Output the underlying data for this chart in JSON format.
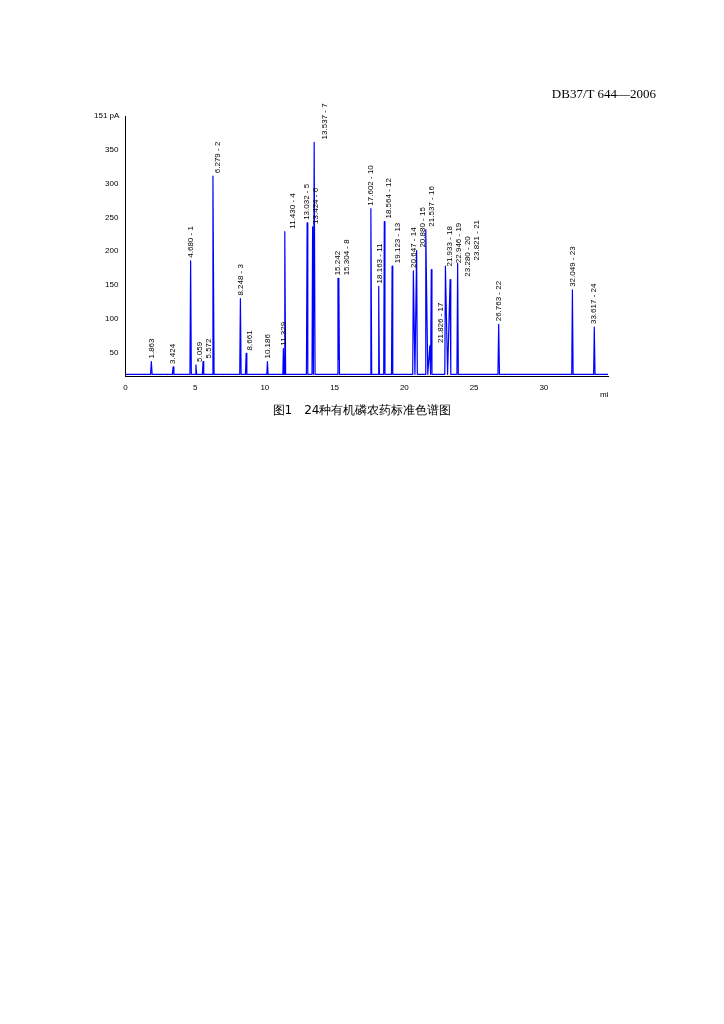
{
  "chart_data": {
    "type": "line",
    "title": "图1　24种有机磷农药标准色谱图",
    "xlabel": "mi",
    "xlim": [
      0,
      34.6
    ],
    "xticks": [
      0,
      5,
      10,
      15,
      20,
      25,
      30
    ],
    "ylim": [
      15,
      400
    ],
    "yticks": [
      50,
      100,
      150,
      200,
      250,
      300,
      350
    ],
    "ylabel": "151 pA",
    "grid": false,
    "legend": false,
    "marker": "none",
    "line_style": "solid",
    "series": [
      {
        "color": "#0000ff",
        "x": [
          0,
          1.81,
          1.863,
          1.92,
          3.37,
          3.424,
          3.48,
          4.63,
          4.68,
          4.73,
          5.01,
          5.059,
          5.11,
          5.52,
          5.572,
          5.62,
          6.22,
          6.279,
          6.36,
          8.2,
          8.248,
          8.3,
          8.61,
          8.661,
          8.71,
          10.14,
          10.186,
          10.23,
          11.29,
          11.329,
          11.38,
          11.43,
          11.49,
          12.98,
          13.032,
          13.08,
          13.38,
          13.424,
          13.48,
          13.537,
          13.6,
          15.2,
          15.242,
          15.273,
          15.304,
          15.35,
          17.55,
          17.602,
          17.66,
          18.12,
          18.163,
          18.21,
          18.52,
          18.564,
          18.61,
          19.08,
          19.123,
          19.17,
          20.6,
          20.647,
          20.76,
          20.88,
          20.93,
          21.49,
          21.537,
          21.68,
          21.826,
          21.88,
          21.933,
          21.98,
          22.9,
          22.946,
          23.1,
          23.28,
          23.33,
          23.77,
          23.821,
          23.87,
          26.71,
          26.763,
          26.82,
          32,
          32.049,
          32.1,
          33.57,
          33.617,
          33.67,
          34.6
        ],
        "values": [
          18,
          18,
          37,
          18,
          18,
          29,
          18,
          18,
          186,
          18,
          18,
          32,
          18,
          18,
          37,
          18,
          18,
          311,
          18,
          18,
          130,
          18,
          18,
          49,
          18,
          18,
          37,
          18,
          18,
          56,
          18,
          229,
          18,
          18,
          242,
          18,
          18,
          236,
          18,
          361,
          18,
          18,
          160,
          40,
          160,
          18,
          18,
          263,
          18,
          18,
          148,
          18,
          18,
          244,
          18,
          18,
          178,
          18,
          18,
          171,
          18,
          201,
          18,
          18,
          232,
          18,
          60,
          18,
          173,
          18,
          18,
          178,
          18,
          158,
          18,
          18,
          182,
          18,
          18,
          92,
          18,
          18,
          143,
          18,
          18,
          88,
          18,
          18
        ]
      }
    ],
    "annotations": [
      "DB37/T 644—2006",
      {
        "text": "1.863",
        "x": 1.863,
        "y": 37
      },
      {
        "text": "3.424",
        "x": 3.424,
        "y": 29
      },
      {
        "text": "4.680 - 1",
        "x": 4.68,
        "y": 186
      },
      {
        "text": "5.059",
        "x": 5.059,
        "y": 32
      },
      {
        "text": "5.572",
        "x": 5.572,
        "y": 37
      },
      {
        "text": "6.279 - 2",
        "x": 6.279,
        "y": 311
      },
      {
        "text": "8.248 - 3",
        "x": 8.248,
        "y": 130
      },
      {
        "text": "8.661",
        "x": 8.661,
        "y": 49
      },
      {
        "text": "10.186",
        "x": 10.186,
        "y": 37
      },
      {
        "text": "11.329",
        "x": 11.329,
        "y": 56
      },
      {
        "text": "11.430 - 4",
        "x": 11.43,
        "y": 229
      },
      {
        "text": "13.032 - 5",
        "x": 13.032,
        "y": 242
      },
      {
        "text": "13.424 - 6",
        "x": 13.424,
        "y": 236
      },
      {
        "text": "13.537 - 7",
        "x": 13.537,
        "y": 361
      },
      {
        "text": "15.242",
        "x": 15.242,
        "y": 160
      },
      {
        "text": "15.304 - 8",
        "x": 15.304,
        "y": 160
      },
      {
        "text": "17.602 - 10",
        "x": 17.602,
        "y": 263
      },
      {
        "text": "18.163 - 11",
        "x": 18.163,
        "y": 148
      },
      {
        "text": "18.564 - 12",
        "x": 18.564,
        "y": 244
      },
      {
        "text": "19.123 - 13",
        "x": 19.123,
        "y": 178
      },
      {
        "text": "20.647 - 14",
        "x": 20.647,
        "y": 171
      },
      {
        "text": "20.880 - 15",
        "x": 20.88,
        "y": 201
      },
      {
        "text": "21.537 - 16",
        "x": 21.537,
        "y": 232
      },
      {
        "text": "21.826 - 17",
        "x": 21.826,
        "y": 60
      },
      {
        "text": "21.933 - 18",
        "x": 21.933,
        "y": 173
      },
      {
        "text": "22.946 - 19",
        "x": 22.946,
        "y": 178
      },
      {
        "text": "23.280 - 20",
        "x": 23.28,
        "y": 158
      },
      {
        "text": "23.821 - 21",
        "x": 23.821,
        "y": 182
      },
      {
        "text": "26.763 - 22",
        "x": 26.763,
        "y": 92
      },
      {
        "text": "32.049 - 23",
        "x": 32.049,
        "y": 143
      },
      {
        "text": "33.617 - 24",
        "x": 33.617,
        "y": 88
      }
    ]
  }
}
